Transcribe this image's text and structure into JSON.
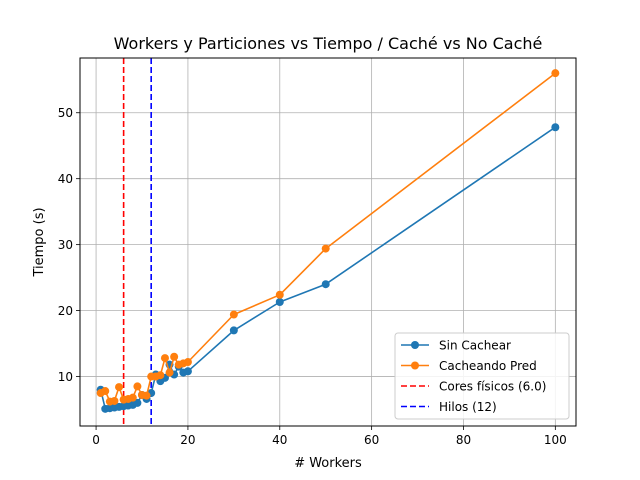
{
  "chart_data": {
    "type": "line",
    "title": "Workers y Particiones vs Tiempo / Caché vs No Caché",
    "xlabel": "# Workers",
    "ylabel": "Tiempo (s)",
    "xlim": [
      -3.5,
      104.5
    ],
    "ylim": [
      2.5,
      58.3
    ],
    "xticks": [
      0,
      20,
      40,
      60,
      80,
      100
    ],
    "yticks": [
      10,
      20,
      30,
      40,
      50
    ],
    "grid": true,
    "legend_position": "lower-right",
    "series": [
      {
        "name": "Sin Cachear",
        "color": "#1f77b4",
        "x": [
          1,
          2,
          3,
          4,
          5,
          6,
          7,
          8,
          9,
          10,
          11,
          12,
          13,
          14,
          15,
          16,
          17,
          18,
          19,
          20,
          30,
          40,
          50,
          100
        ],
        "y": [
          8.0,
          5.1,
          5.2,
          5.3,
          5.4,
          5.5,
          5.6,
          5.7,
          6.0,
          7.2,
          6.6,
          7.5,
          10.3,
          9.3,
          9.8,
          11.8,
          10.3,
          11.5,
          10.6,
          10.8,
          17.0,
          21.3,
          24.0,
          47.8
        ]
      },
      {
        "name": "Cacheando Pred",
        "color": "#ff7f0e",
        "x": [
          1,
          2,
          3,
          4,
          5,
          6,
          7,
          8,
          9,
          10,
          11,
          12,
          13,
          14,
          15,
          16,
          17,
          18,
          19,
          20,
          30,
          40,
          50,
          100
        ],
        "y": [
          7.5,
          7.8,
          6.2,
          6.3,
          8.4,
          6.5,
          6.6,
          6.8,
          8.5,
          7.2,
          7.1,
          10.0,
          10.0,
          10.2,
          12.8,
          10.6,
          13.0,
          11.8,
          12.0,
          12.2,
          19.4,
          22.4,
          29.4,
          56.0
        ]
      }
    ],
    "vlines": [
      {
        "name": "Cores físicos (6.0)",
        "x": 6,
        "color": "#ff0000"
      },
      {
        "name": "Hilos (12)",
        "x": 12,
        "color": "#0000ff"
      }
    ]
  }
}
